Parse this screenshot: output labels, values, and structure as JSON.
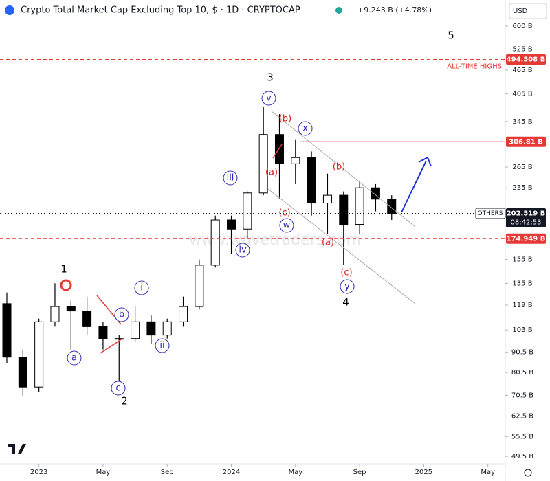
{
  "chart_data": {
    "type": "candlestick",
    "title": "Crypto Total Market Cap Excluding Top 10, $ · 1D · CRYPTOCAP",
    "change": "+9.243 B (+4.78%)",
    "currency": "USD",
    "watermark": "www.wavetraders.com",
    "log_scale": true,
    "color": "#000000",
    "x": [
      "2022-11",
      "2022-12",
      "2023-01",
      "2023-02",
      "2023-03",
      "2023-04",
      "2023-05",
      "2023-06",
      "2023-07",
      "2023-08",
      "2023-09",
      "2023-10",
      "2023-11",
      "2023-12",
      "2024-01",
      "2024-02",
      "2024-03",
      "2024-04",
      "2024-05",
      "2024-06",
      "2024-07",
      "2024-08",
      "2024-09",
      "2024-10",
      "2024-11"
    ],
    "open": [
      120,
      88,
      74,
      108,
      118,
      115,
      105,
      98,
      98,
      108,
      100,
      108,
      118,
      150,
      195,
      185,
      228,
      320,
      270,
      280,
      215,
      225,
      190,
      235,
      220
    ],
    "high": [
      128,
      92,
      110,
      135,
      122,
      125,
      108,
      100,
      118,
      112,
      110,
      125,
      155,
      200,
      200,
      230,
      375,
      360,
      310,
      290,
      255,
      230,
      245,
      240,
      225
    ],
    "low": [
      85,
      70,
      72,
      105,
      92,
      100,
      92,
      76,
      96,
      95,
      98,
      105,
      116,
      148,
      160,
      175,
      225,
      220,
      240,
      200,
      180,
      150,
      180,
      205,
      195
    ],
    "close": [
      88,
      74,
      108,
      118,
      115,
      105,
      98,
      98,
      108,
      100,
      108,
      118,
      150,
      195,
      185,
      228,
      320,
      270,
      280,
      215,
      225,
      190,
      235,
      220,
      202.519
    ],
    "xlim": [
      "2022-11",
      "2025-06"
    ],
    "xticks": [
      {
        "value": "2023-01",
        "label": "2023"
      },
      {
        "value": "2023-05",
        "label": "May"
      },
      {
        "value": "2023-09",
        "label": "Sep"
      },
      {
        "value": "2024-01",
        "label": "2024"
      },
      {
        "value": "2024-05",
        "label": "May"
      },
      {
        "value": "2024-09",
        "label": "Sep"
      },
      {
        "value": "2025-01",
        "label": "2025"
      },
      {
        "value": "2025-05",
        "label": "May"
      }
    ],
    "ylim": [
      47.4,
      698
    ],
    "yticks": [
      {
        "value": 600,
        "label": "600 B"
      },
      {
        "value": 525,
        "label": "525 B"
      },
      {
        "value": 465,
        "label": "465 B"
      },
      {
        "value": 405,
        "label": "405 B"
      },
      {
        "value": 345,
        "label": "345 B"
      },
      {
        "value": 265,
        "label": "265 B"
      },
      {
        "value": 235,
        "label": "235 B"
      },
      {
        "value": 155,
        "label": "155 B"
      },
      {
        "value": 135,
        "label": "135 B"
      },
      {
        "value": 119,
        "label": "119 B"
      },
      {
        "value": 103,
        "label": "103 B"
      },
      {
        "value": 90.5,
        "label": "90.5 B"
      },
      {
        "value": 80.5,
        "label": "80.5 B"
      },
      {
        "value": 70.5,
        "label": "70.5 B"
      },
      {
        "value": 62.5,
        "label": "62.5 B"
      },
      {
        "value": 55.5,
        "label": "55.5 B"
      },
      {
        "value": 49.5,
        "label": "49.5 B"
      }
    ],
    "levels": [
      {
        "value": 494.508,
        "label": "494.508 B",
        "color": "#e53935",
        "style": "dashed",
        "note": "ALL-TIME HIGHS"
      },
      {
        "value": 306.81,
        "label": "306.81 B",
        "color": "#e53935",
        "style": "solid"
      },
      {
        "value": 202.519,
        "label": "202.519 B",
        "color": "#131722",
        "style": "dotted",
        "name": "OTHERS",
        "countdown": "08:42:53"
      },
      {
        "value": 174.949,
        "label": "174.949 B",
        "color": "#e53935",
        "style": "dashed"
      }
    ],
    "annotations": [
      "1",
      "2",
      "3",
      "4",
      "5",
      "a",
      "b",
      "c",
      "i",
      "ii",
      "iii",
      "iv",
      "v",
      "w",
      "x",
      "y",
      "(a)",
      "(b)",
      "(c)",
      "(a)",
      "(b)",
      "(c)"
    ]
  }
}
